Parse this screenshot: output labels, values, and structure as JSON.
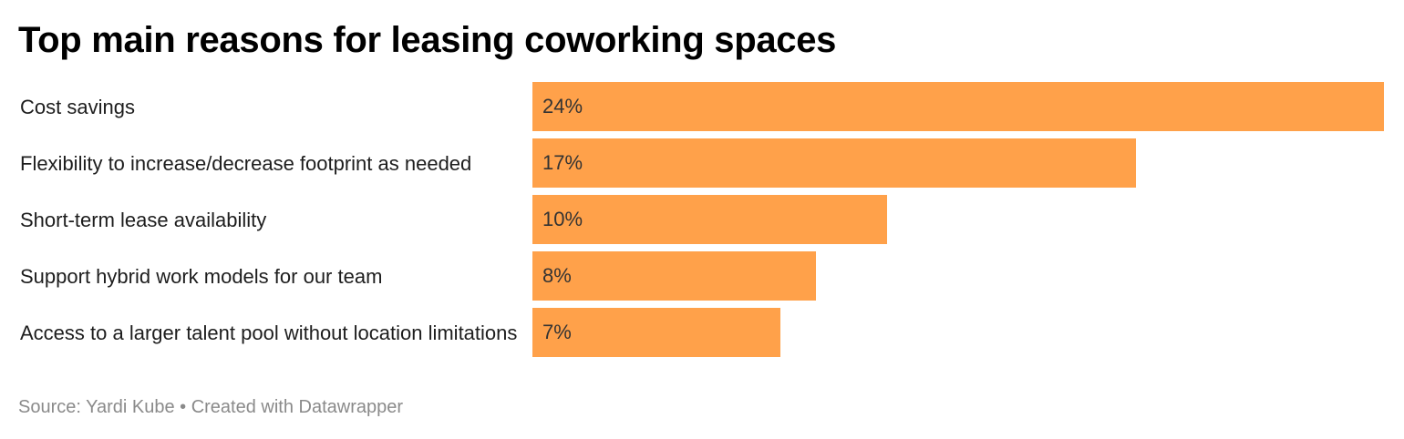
{
  "chart_data": {
    "type": "bar",
    "orientation": "horizontal",
    "title": "Top main reasons for leasing coworking spaces",
    "categories": [
      "Cost savings",
      "Flexibility to increase/decrease footprint as needed",
      "Short-term lease availability",
      "Support hybrid work models for our team",
      "Access to a larger talent pool without location limitations"
    ],
    "values": [
      24,
      17,
      10,
      8,
      7
    ],
    "value_labels": [
      "24%",
      "17%",
      "10%",
      "8%",
      "7%"
    ],
    "xlim": [
      0,
      24
    ],
    "grid": false,
    "legend": "none",
    "bar_color": "#ffa14a"
  },
  "footer": {
    "source_text": "Source: Yardi Kube • Created with Datawrapper"
  }
}
